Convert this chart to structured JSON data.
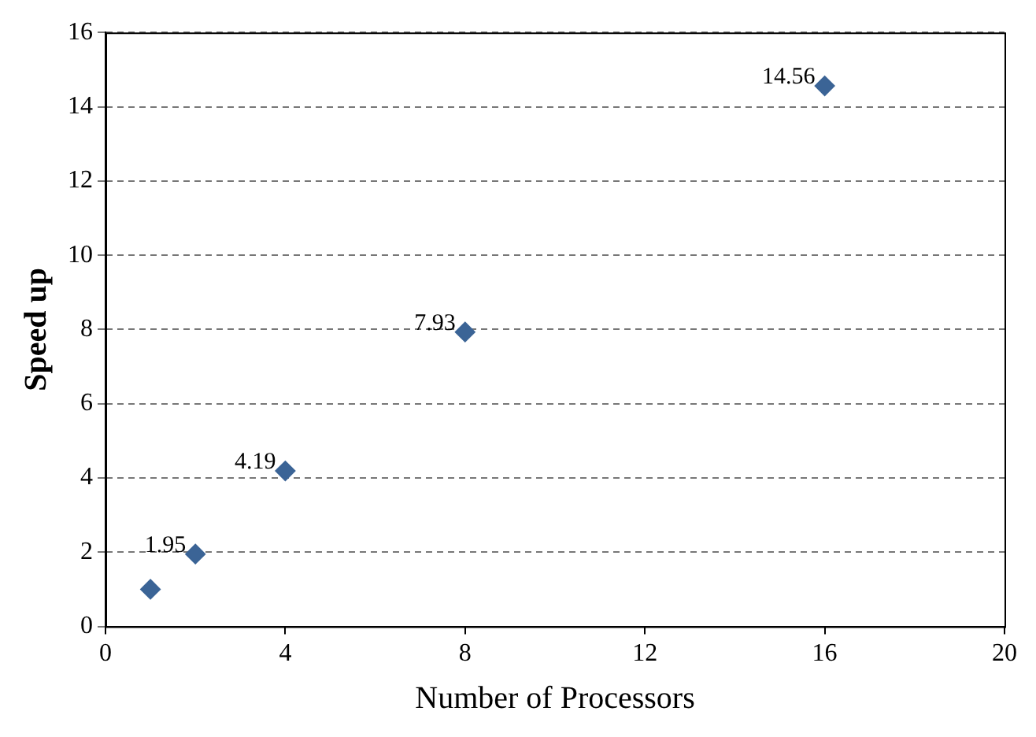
{
  "chart_data": {
    "type": "scatter",
    "xlabel": "Number of Processors",
    "ylabel": "Speed up",
    "x": [
      1,
      2,
      4,
      8,
      16
    ],
    "values": [
      1,
      1.95,
      4.19,
      7.93,
      14.56
    ],
    "value_labels": [
      null,
      "1.95",
      "4.19",
      "7.93",
      "14.56"
    ],
    "color": "#3b6496",
    "marker": "diamond",
    "grid": "y",
    "legend": false,
    "xlim": [
      0,
      20
    ],
    "xticks": [
      0,
      4,
      8,
      12,
      16,
      20
    ],
    "ylim": [
      0,
      16
    ],
    "yticks": [
      0,
      2,
      4,
      6,
      8,
      10,
      12,
      14,
      16
    ]
  }
}
